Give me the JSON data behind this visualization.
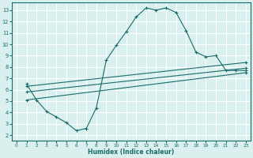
{
  "xlabel": "Humidex (Indice chaleur)",
  "bg_color": "#d9f0ee",
  "line_color": "#1a6b6b",
  "grid_color": "#ffffff",
  "xlim": [
    -0.5,
    23.5
  ],
  "ylim": [
    1.5,
    13.7
  ],
  "xticks": [
    0,
    1,
    2,
    3,
    4,
    5,
    6,
    7,
    8,
    9,
    10,
    11,
    12,
    13,
    14,
    15,
    16,
    17,
    18,
    19,
    20,
    21,
    22,
    23
  ],
  "yticks": [
    2,
    3,
    4,
    5,
    6,
    7,
    8,
    9,
    10,
    11,
    12,
    13
  ],
  "curve1_x": [
    1,
    2,
    3,
    4,
    5,
    6,
    7,
    8,
    9,
    10,
    11,
    12,
    13,
    14,
    15,
    16,
    17,
    18,
    19,
    20,
    21,
    22,
    23
  ],
  "curve1_y": [
    6.5,
    5.1,
    4.1,
    3.6,
    3.1,
    2.4,
    2.6,
    4.4,
    8.6,
    9.9,
    11.1,
    12.4,
    13.2,
    13.0,
    13.2,
    12.8,
    11.2,
    9.3,
    8.9,
    9.0,
    7.7,
    7.7,
    7.7
  ],
  "curve2_x": [
    1,
    23
  ],
  "curve2_y": [
    6.3,
    8.4
  ],
  "curve3_x": [
    1,
    23
  ],
  "curve3_y": [
    5.8,
    7.9
  ],
  "curve4_x": [
    1,
    23
  ],
  "curve4_y": [
    5.1,
    7.5
  ]
}
